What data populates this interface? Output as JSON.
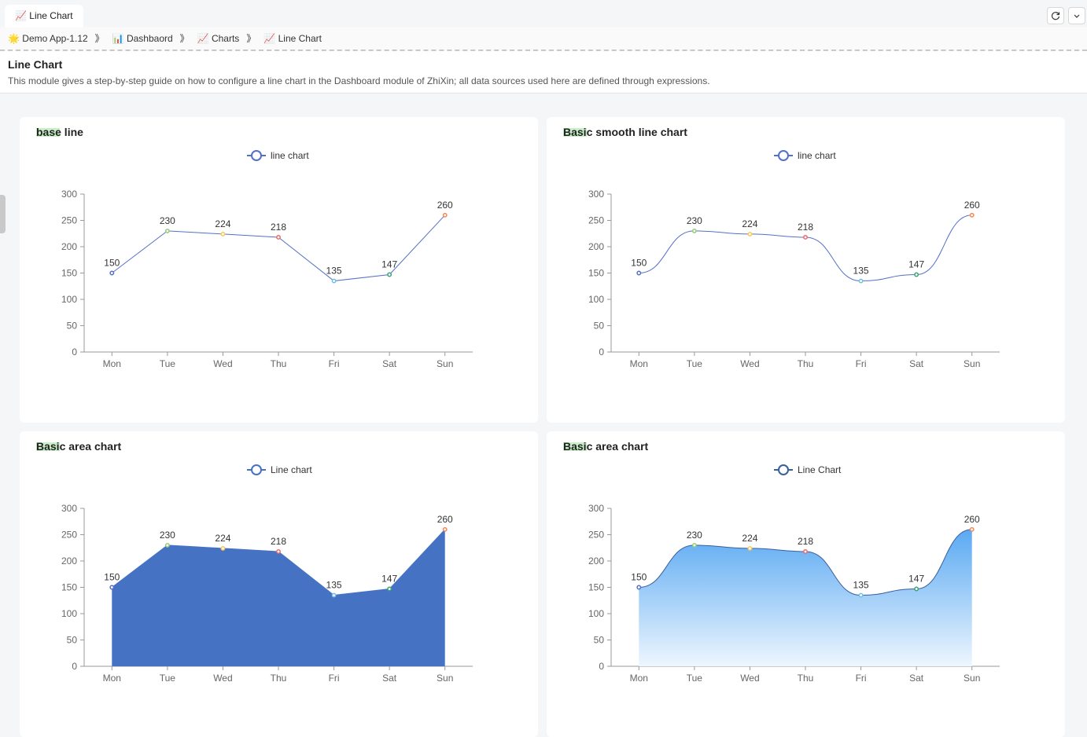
{
  "tab": "📈 Line Chart",
  "breadcrumbs": [
    "🌟 Demo App-1.12",
    "📊 Dashbaord",
    "📈 Charts",
    "📈 Line Chart"
  ],
  "breadcrumb_separator": "》",
  "page_header": {
    "title": "Line Chart",
    "description": "This module gives a step-by-step guide on how to configure a line chart in the Dashboard module of ZhiXin; all data sources used here are defined through expressions."
  },
  "chart_data": [
    {
      "type": "line",
      "title": "base line",
      "smooth": false,
      "area": false,
      "categories": [
        "Mon",
        "Tue",
        "Wed",
        "Thu",
        "Fri",
        "Sat",
        "Sun"
      ],
      "series": [
        {
          "name": "line chart",
          "color": "#5470c6",
          "values": [
            150,
            230,
            224,
            218,
            135,
            147,
            260
          ]
        }
      ],
      "point_colors": [
        "#5470c6",
        "#91cc75",
        "#fac858",
        "#ee6666",
        "#73c0de",
        "#3ba272",
        "#fc8452"
      ],
      "ylim": [
        0,
        300
      ],
      "yticks": [
        0,
        50,
        100,
        150,
        200,
        250,
        300
      ]
    },
    {
      "type": "line",
      "title": "Basic smooth line chart",
      "smooth": true,
      "area": false,
      "categories": [
        "Mon",
        "Tue",
        "Wed",
        "Thu",
        "Fri",
        "Sat",
        "Sun"
      ],
      "series": [
        {
          "name": "line chart",
          "color": "#5470c6",
          "values": [
            150,
            230,
            224,
            218,
            135,
            147,
            260
          ]
        }
      ],
      "point_colors": [
        "#5470c6",
        "#91cc75",
        "#fac858",
        "#ee6666",
        "#73c0de",
        "#3ba272",
        "#fc8452"
      ],
      "ylim": [
        0,
        300
      ],
      "yticks": [
        0,
        50,
        100,
        150,
        200,
        250,
        300
      ]
    },
    {
      "type": "line",
      "title": "Basic area chart",
      "smooth": false,
      "area": true,
      "area_colors": [
        "#4672c4",
        "#4672c4"
      ],
      "categories": [
        "Mon",
        "Tue",
        "Wed",
        "Thu",
        "Fri",
        "Sat",
        "Sun"
      ],
      "series": [
        {
          "name": "Line chart",
          "color": "#4672c4",
          "values": [
            150,
            230,
            224,
            218,
            135,
            147,
            260
          ]
        }
      ],
      "point_colors": [
        "#5470c6",
        "#91cc75",
        "#fac858",
        "#ee6666",
        "#73c0de",
        "#3ba272",
        "#fc8452"
      ],
      "ylim": [
        0,
        300
      ],
      "yticks": [
        0,
        50,
        100,
        150,
        200,
        250,
        300
      ]
    },
    {
      "type": "line",
      "title": "Basic area chart",
      "smooth": true,
      "area": true,
      "area_colors": [
        "#5aa9f2",
        "#eef6fe"
      ],
      "categories": [
        "Mon",
        "Tue",
        "Wed",
        "Thu",
        "Fri",
        "Sat",
        "Sun"
      ],
      "series": [
        {
          "name": "Line Chart",
          "color": "#3a5f9e",
          "values": [
            150,
            230,
            224,
            218,
            135,
            147,
            260
          ]
        }
      ],
      "point_colors": [
        "#5470c6",
        "#91cc75",
        "#fac858",
        "#ee6666",
        "#73c0de",
        "#3ba272",
        "#fc8452"
      ],
      "ylim": [
        0,
        300
      ],
      "yticks": [
        0,
        50,
        100,
        150,
        200,
        250,
        300
      ]
    }
  ]
}
